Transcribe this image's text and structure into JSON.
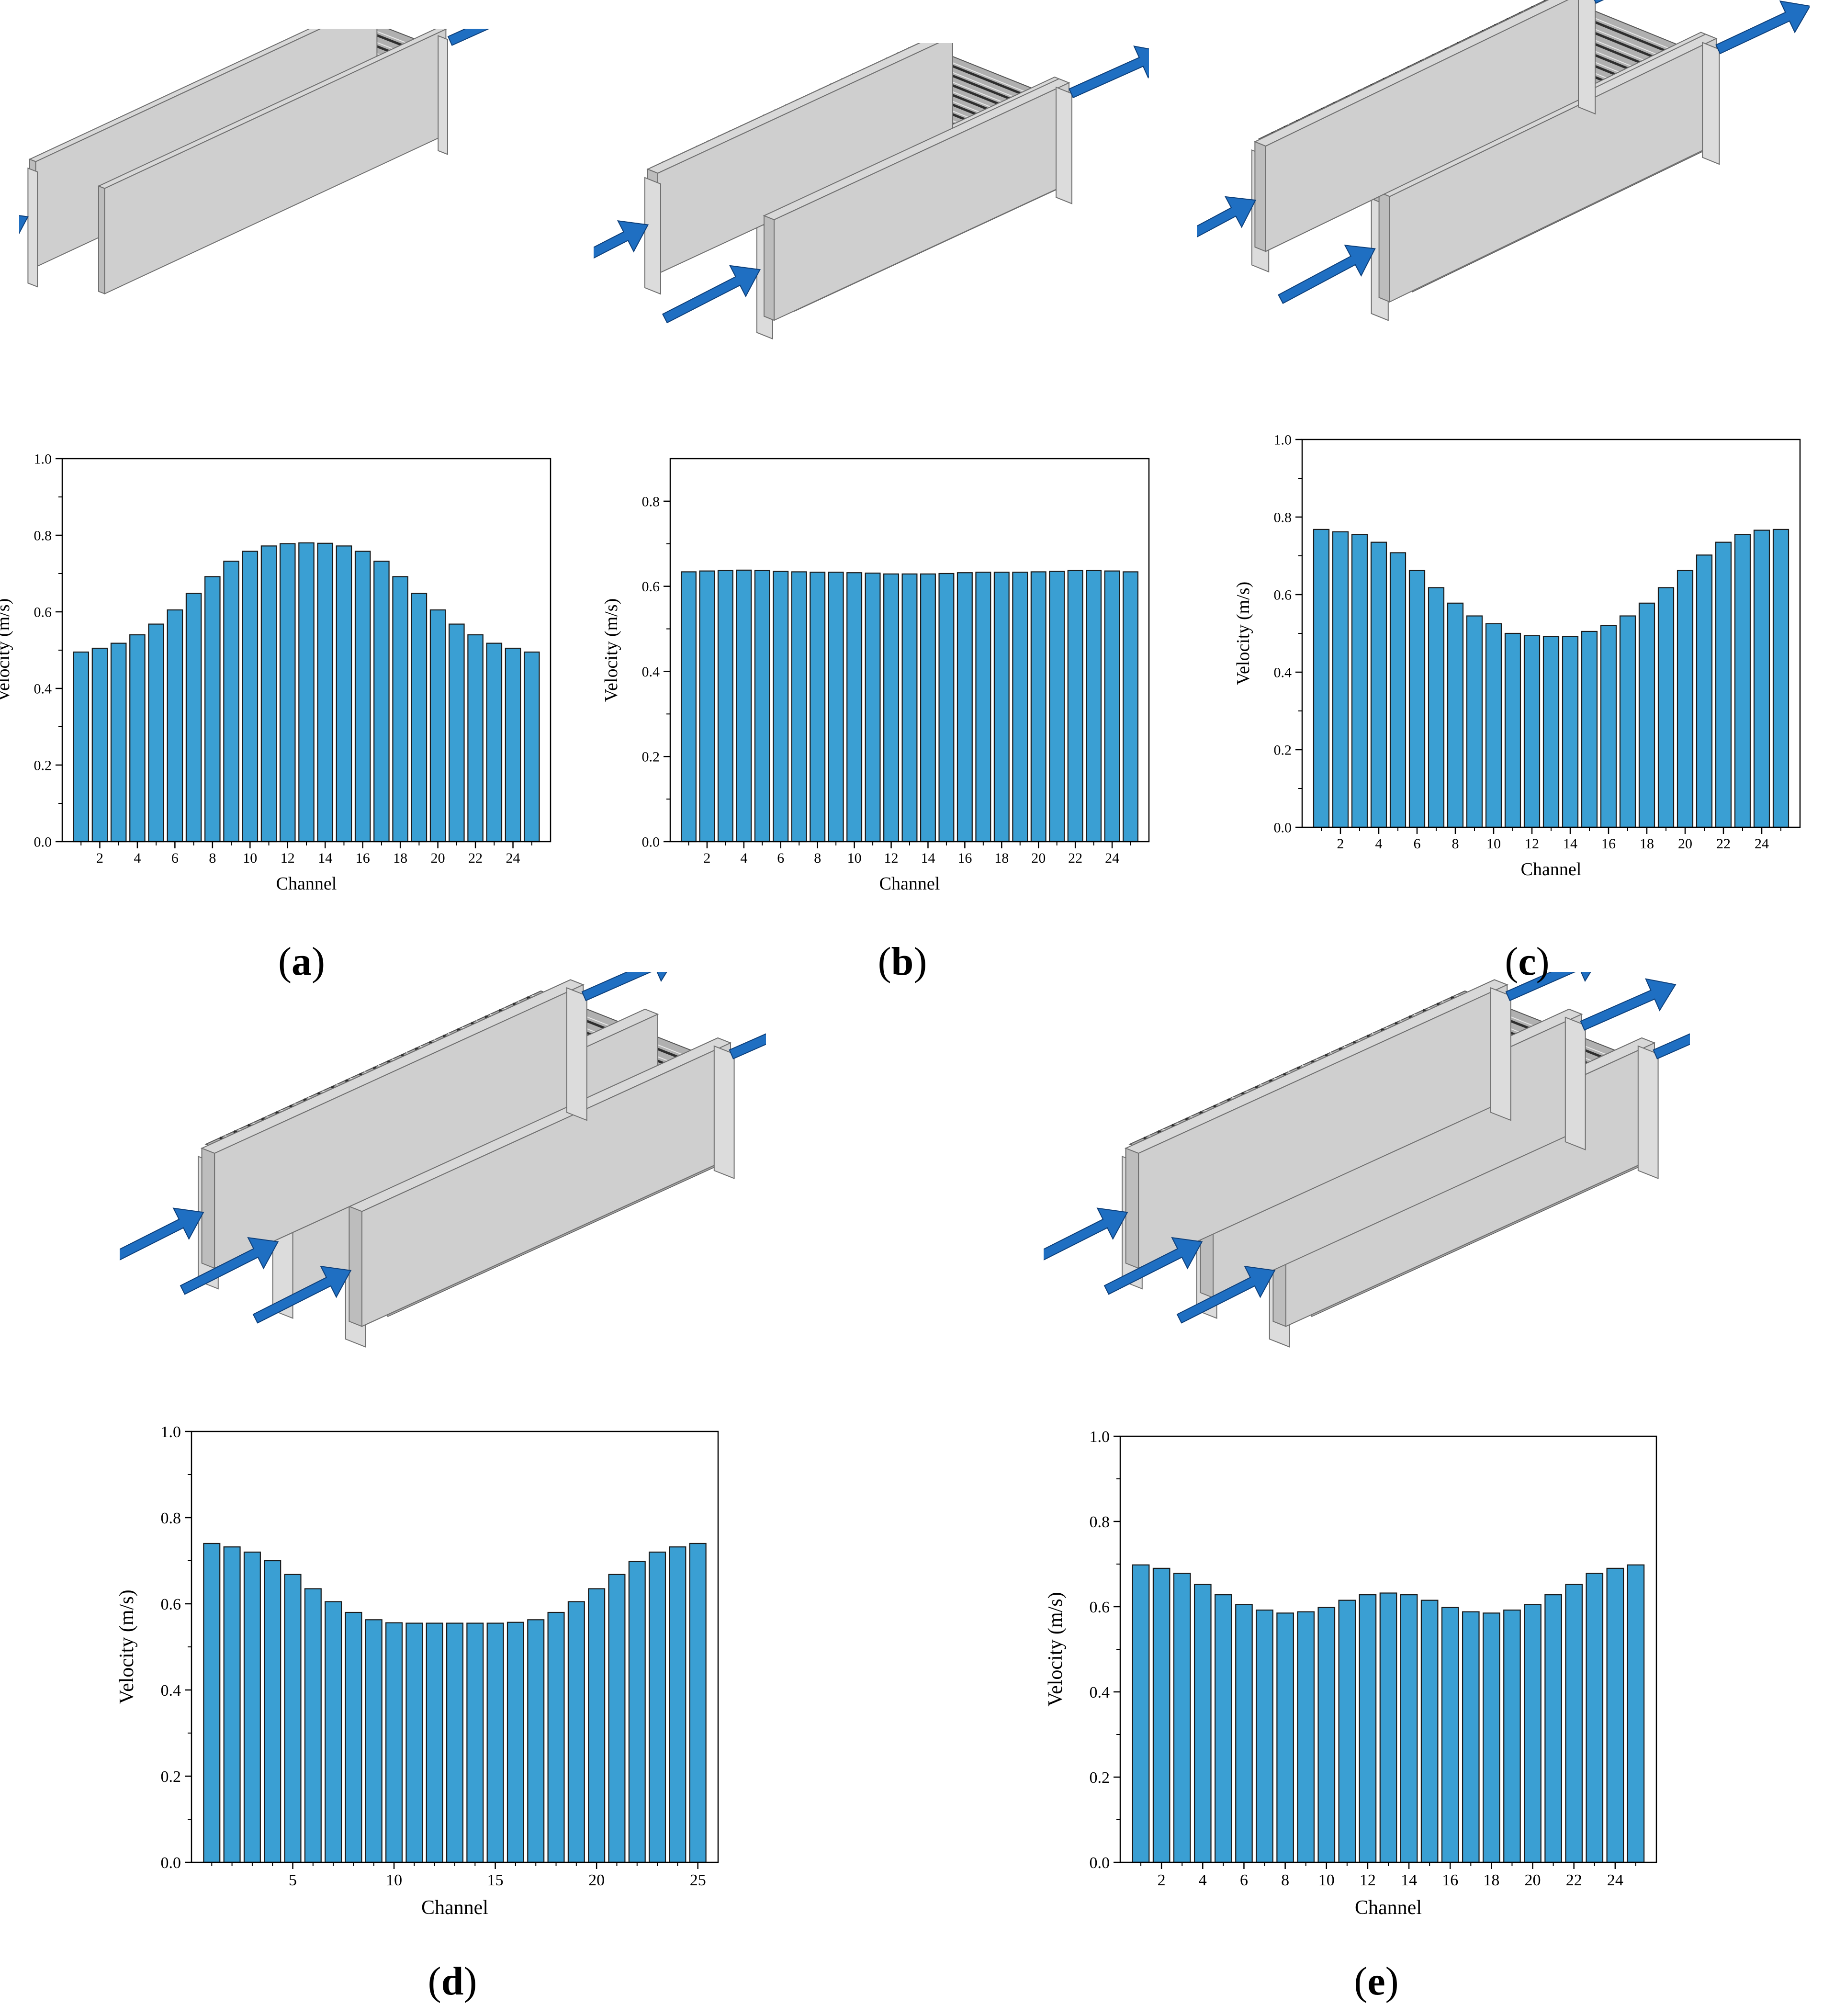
{
  "colors": {
    "bar_fill": "#3a9fd3",
    "bar_stroke": "#1b1b1b",
    "arrow_fill": "#1f6fc2",
    "device_light": "#d8d8d8",
    "device_mid": "#bdbdbd",
    "device_dark": "#707070"
  },
  "panels": [
    {
      "label": "a",
      "diagram": {
        "inlets": 1,
        "outlets": 1,
        "icon": "heat-exchanger-1-inlet-1-outlet"
      }
    },
    {
      "label": "b",
      "diagram": {
        "inlets": 2,
        "outlets": 1,
        "icon": "heat-exchanger-2-inlets-1-outlet"
      }
    },
    {
      "label": "c",
      "diagram": {
        "inlets": 2,
        "outlets": 2,
        "icon": "heat-exchanger-2-inlets-2-outlets"
      }
    },
    {
      "label": "d",
      "diagram": {
        "inlets": 3,
        "outlets": 2,
        "icon": "heat-exchanger-3-inlets-2-outlets"
      }
    },
    {
      "label": "e",
      "diagram": {
        "inlets": 3,
        "outlets": 3,
        "icon": "heat-exchanger-3-inlets-3-outlets"
      }
    }
  ],
  "chart_data": [
    {
      "panel": "a",
      "type": "bar",
      "xlabel": "Channel",
      "ylabel": "Velocity (m/s)",
      "ylim": [
        0,
        1.0
      ],
      "yticks": [
        0.0,
        0.2,
        0.4,
        0.6,
        0.8,
        1.0
      ],
      "ytick_labels": [
        "0.0",
        "0.2",
        "0.4",
        "0.6",
        "0.8",
        "1.0"
      ],
      "xticks": [
        2,
        4,
        6,
        8,
        10,
        12,
        14,
        16,
        18,
        20,
        22,
        24
      ],
      "xtick_labels": [
        "2",
        "4",
        "6",
        "8",
        "10",
        "12",
        "14",
        "16",
        "18",
        "20",
        "22",
        "24"
      ],
      "x": [
        1,
        2,
        3,
        4,
        5,
        6,
        7,
        8,
        9,
        10,
        11,
        12,
        13,
        14,
        15,
        16,
        17,
        18,
        19,
        20,
        21,
        22,
        23,
        24,
        25
      ],
      "values": [
        0.495,
        0.505,
        0.518,
        0.54,
        0.568,
        0.605,
        0.648,
        0.692,
        0.732,
        0.758,
        0.772,
        0.778,
        0.78,
        0.779,
        0.772,
        0.758,
        0.732,
        0.692,
        0.648,
        0.605,
        0.568,
        0.54,
        0.518,
        0.505,
        0.495
      ],
      "grid": false,
      "legend": false
    },
    {
      "panel": "b",
      "type": "bar",
      "xlabel": "Channel",
      "ylabel": "Velocity (m/s)",
      "ylim": [
        0,
        0.9
      ],
      "yticks": [
        0.0,
        0.2,
        0.4,
        0.6,
        0.8
      ],
      "ytick_labels": [
        "0.0",
        "0.2",
        "0.4",
        "0.6",
        "0.8"
      ],
      "xticks": [
        2,
        4,
        6,
        8,
        10,
        12,
        14,
        16,
        18,
        20,
        22,
        24
      ],
      "xtick_labels": [
        "2",
        "4",
        "6",
        "8",
        "10",
        "12",
        "14",
        "16",
        "18",
        "20",
        "22",
        "24"
      ],
      "x": [
        1,
        2,
        3,
        4,
        5,
        6,
        7,
        8,
        9,
        10,
        11,
        12,
        13,
        14,
        15,
        16,
        17,
        18,
        19,
        20,
        21,
        22,
        23,
        24,
        25
      ],
      "values": [
        0.634,
        0.636,
        0.637,
        0.638,
        0.637,
        0.635,
        0.634,
        0.633,
        0.633,
        0.632,
        0.631,
        0.629,
        0.629,
        0.629,
        0.63,
        0.632,
        0.633,
        0.633,
        0.633,
        0.634,
        0.635,
        0.637,
        0.637,
        0.636,
        0.634
      ],
      "grid": false,
      "legend": false
    },
    {
      "panel": "c",
      "type": "bar",
      "xlabel": "Channel",
      "ylabel": "Velocity (m/s)",
      "ylim": [
        0,
        1.0
      ],
      "yticks": [
        0.0,
        0.2,
        0.4,
        0.6,
        0.8,
        1.0
      ],
      "ytick_labels": [
        "0.0",
        "0.2",
        "0.4",
        "0.6",
        "0.8",
        "1.0"
      ],
      "xticks": [
        2,
        4,
        6,
        8,
        10,
        12,
        14,
        16,
        18,
        20,
        22,
        24
      ],
      "xtick_labels": [
        "2",
        "4",
        "6",
        "8",
        "10",
        "12",
        "14",
        "16",
        "18",
        "20",
        "22",
        "24"
      ],
      "x": [
        1,
        2,
        3,
        4,
        5,
        6,
        7,
        8,
        9,
        10,
        11,
        12,
        13,
        14,
        15,
        16,
        17,
        18,
        19,
        20,
        21,
        22,
        23,
        24,
        25
      ],
      "values": [
        0.768,
        0.762,
        0.755,
        0.735,
        0.708,
        0.662,
        0.618,
        0.578,
        0.545,
        0.525,
        0.5,
        0.494,
        0.492,
        0.492,
        0.505,
        0.52,
        0.545,
        0.578,
        0.618,
        0.662,
        0.702,
        0.735,
        0.755,
        0.766,
        0.768
      ],
      "grid": false,
      "legend": false
    },
    {
      "panel": "d",
      "type": "bar",
      "xlabel": "Channel",
      "ylabel": "Velocity (m/s)",
      "ylim": [
        0,
        1.0
      ],
      "yticks": [
        0.0,
        0.2,
        0.4,
        0.6,
        0.8,
        1.0
      ],
      "ytick_labels": [
        "0.0",
        "0.2",
        "0.4",
        "0.6",
        "0.8",
        "1.0"
      ],
      "xticks": [
        5,
        10,
        15,
        20,
        25
      ],
      "xtick_labels": [
        "5",
        "10",
        "15",
        "20",
        "25"
      ],
      "x": [
        1,
        2,
        3,
        4,
        5,
        6,
        7,
        8,
        9,
        10,
        11,
        12,
        13,
        14,
        15,
        16,
        17,
        18,
        19,
        20,
        21,
        22,
        23,
        24,
        25
      ],
      "values": [
        0.74,
        0.732,
        0.72,
        0.7,
        0.668,
        0.635,
        0.605,
        0.58,
        0.563,
        0.556,
        0.555,
        0.555,
        0.555,
        0.555,
        0.555,
        0.557,
        0.563,
        0.58,
        0.605,
        0.635,
        0.668,
        0.698,
        0.72,
        0.732,
        0.74
      ],
      "grid": false,
      "legend": false
    },
    {
      "panel": "e",
      "type": "bar",
      "xlabel": "Channel",
      "ylabel": "Velocity (m/s)",
      "ylim": [
        0,
        1.0
      ],
      "yticks": [
        0.0,
        0.2,
        0.4,
        0.6,
        0.8,
        1.0
      ],
      "ytick_labels": [
        "0.0",
        "0.2",
        "0.4",
        "0.6",
        "0.8",
        "1.0"
      ],
      "xticks": [
        2,
        4,
        6,
        8,
        10,
        12,
        14,
        16,
        18,
        20,
        22,
        24
      ],
      "xtick_labels": [
        "2",
        "4",
        "6",
        "8",
        "10",
        "12",
        "14",
        "16",
        "18",
        "20",
        "22",
        "24"
      ],
      "x": [
        1,
        2,
        3,
        4,
        5,
        6,
        7,
        8,
        9,
        10,
        11,
        12,
        13,
        14,
        15,
        16,
        17,
        18,
        19,
        20,
        21,
        22,
        23,
        24,
        25
      ],
      "values": [
        0.698,
        0.69,
        0.678,
        0.652,
        0.628,
        0.605,
        0.592,
        0.585,
        0.588,
        0.598,
        0.615,
        0.628,
        0.632,
        0.628,
        0.615,
        0.598,
        0.588,
        0.585,
        0.592,
        0.605,
        0.628,
        0.652,
        0.678,
        0.69,
        0.698
      ],
      "grid": false,
      "legend": false
    }
  ]
}
